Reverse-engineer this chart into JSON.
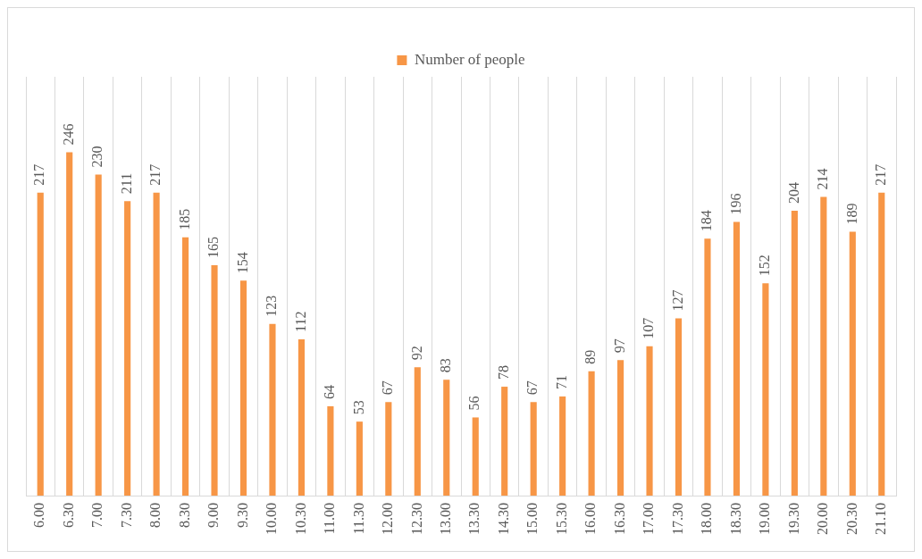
{
  "chart_data": {
    "type": "bar",
    "categories": [
      "6.00",
      "6.30",
      "7.00",
      "7.30",
      "8.00",
      "8.30",
      "9.00",
      "9.30",
      "10.00",
      "10.30",
      "11.00",
      "11.30",
      "12.00",
      "12.30",
      "13.00",
      "13.30",
      "14.30",
      "15.00",
      "15.30",
      "16.00",
      "16.30",
      "17.00",
      "17.30",
      "18.00",
      "18.30",
      "19.00",
      "19.30",
      "20.00",
      "20.30",
      "21.10"
    ],
    "series": [
      {
        "name": "Number of people",
        "color": "#f79646",
        "values": [
          217,
          246,
          230,
          211,
          217,
          185,
          165,
          154,
          123,
          112,
          64,
          53,
          67,
          92,
          83,
          56,
          78,
          67,
          71,
          89,
          97,
          107,
          127,
          184,
          196,
          152,
          204,
          214,
          189,
          217
        ]
      }
    ],
    "data_labels": true,
    "grid": "x",
    "legend": "top"
  }
}
